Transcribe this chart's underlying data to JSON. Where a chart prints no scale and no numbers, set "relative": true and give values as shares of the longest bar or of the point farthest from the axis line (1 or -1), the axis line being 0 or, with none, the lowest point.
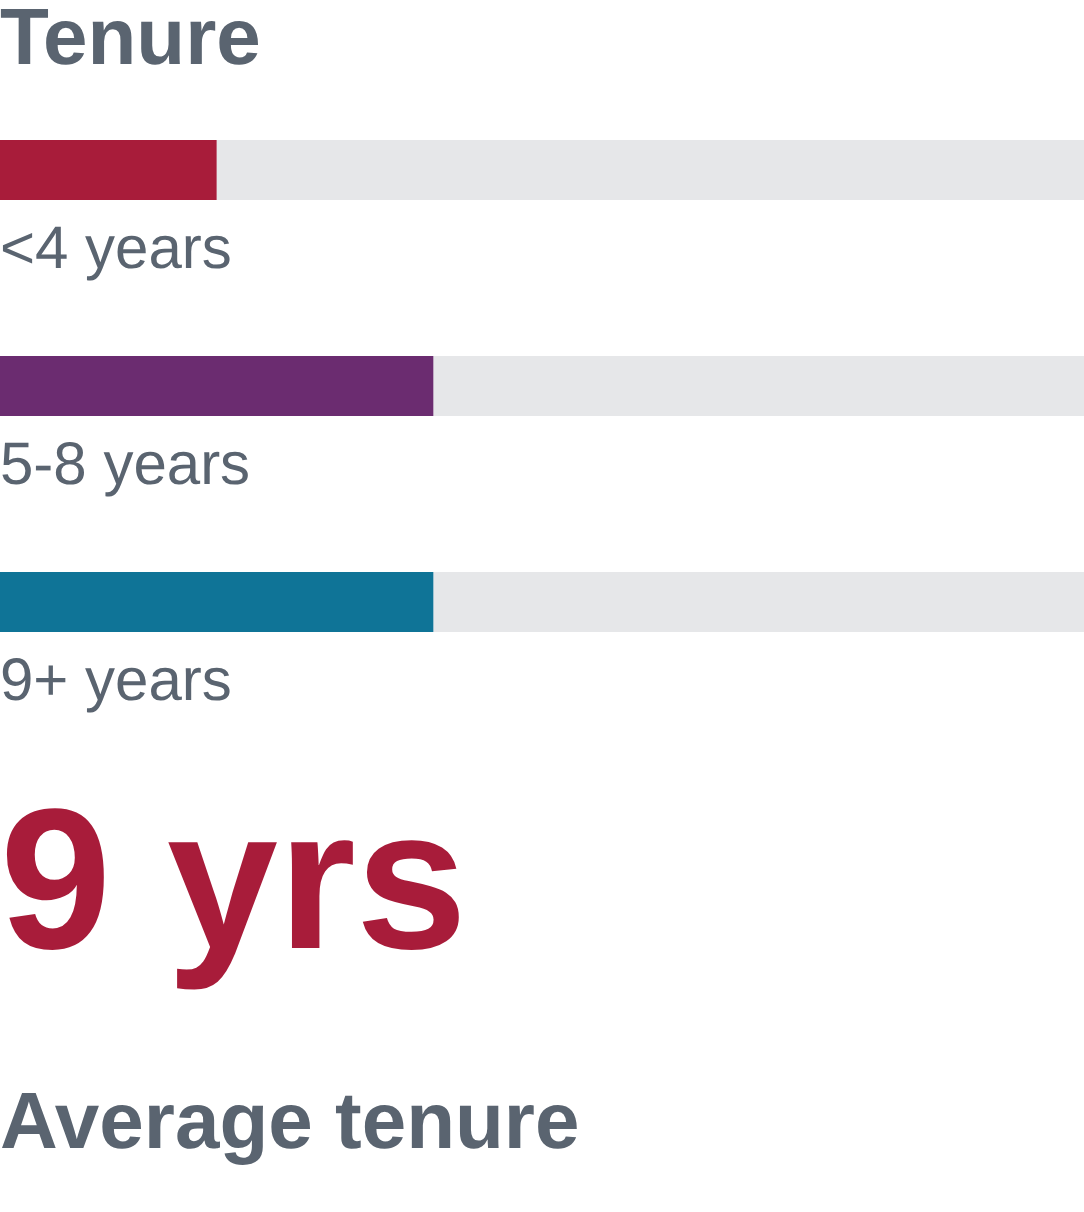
{
  "chart_data": {
    "type": "bar",
    "title": "Tenure",
    "orientation": "horizontal",
    "stacked": true,
    "relative": true,
    "categories": [
      "<4 years",
      "5-8 years",
      "9+ years"
    ],
    "series": [
      {
        "colors": [
          "#a81c3a",
          "#6b2c70",
          "#0f7497"
        ],
        "values": [
          0.2,
          0.4,
          0.4
        ]
      },
      {
        "color": "#e6e7e9",
        "values": [
          0.8,
          0.6,
          0.6
        ]
      }
    ],
    "annotations": [
      "9 yrs",
      "Average tenure"
    ]
  }
}
